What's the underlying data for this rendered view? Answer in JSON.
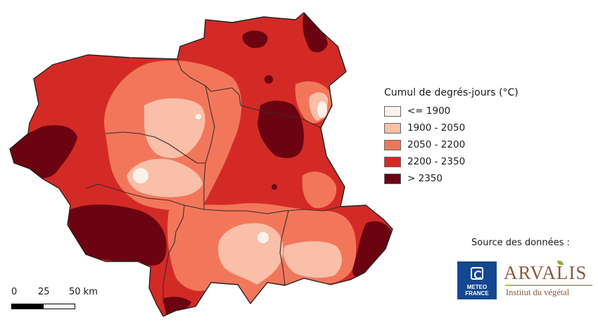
{
  "legend": {
    "title": "Cumul de degrés-jours (°C)",
    "classes": [
      {
        "label": "<= 1900",
        "color": "#fdf1ec"
      },
      {
        "label": "1900 - 2050",
        "color": "#f9bfa8"
      },
      {
        "label": "2050 - 2200",
        "color": "#f2775a"
      },
      {
        "label": "2200 - 2350",
        "color": "#d42a26"
      },
      {
        "label": "> 2350",
        "color": "#6b0410"
      }
    ]
  },
  "source": {
    "title": "Source des données :",
    "meteo": "METEO FRANCE",
    "arvalis_name": "ARVALIS",
    "arvalis_sub": "Institut du végétal"
  },
  "scalebar": {
    "labels": [
      "0",
      "25",
      "50 km"
    ]
  },
  "colors": {
    "border": "#3a2a2a",
    "outline": "#222222"
  }
}
